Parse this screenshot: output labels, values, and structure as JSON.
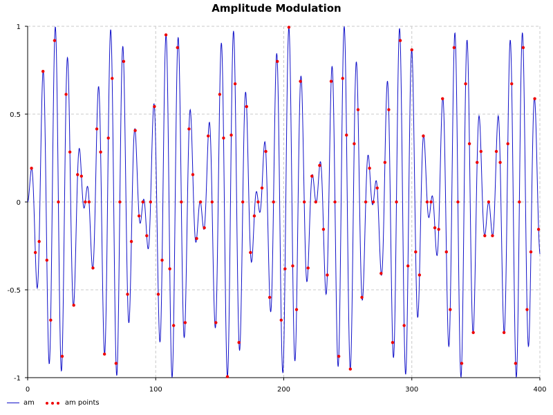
{
  "chart_data": {
    "type": "line",
    "title": "Amplitude Modulation",
    "xlim": [
      0,
      400
    ],
    "ylim": [
      -1,
      1
    ],
    "x_ticks": [
      "0",
      "100",
      "200",
      "300",
      "400"
    ],
    "y_ticks": [
      "1",
      "0.5",
      "0",
      "-0.5",
      "-1"
    ],
    "grid": true,
    "legend_position": "bottom-left",
    "series": [
      {
        "name": "am",
        "style": "line",
        "color": "#1010c8",
        "formula": "y = sin(2*pi*x/90) * sin(2*pi*x/9.6)",
        "x_start": 0,
        "x_end": 400
      },
      {
        "name": "am points",
        "style": "points",
        "color": "#ee0000",
        "formula": "y = sin(2*pi*x/90) * sin(2*pi*x/9.6)",
        "x_start": 3,
        "x_step": 3,
        "x_end": 399
      }
    ]
  }
}
